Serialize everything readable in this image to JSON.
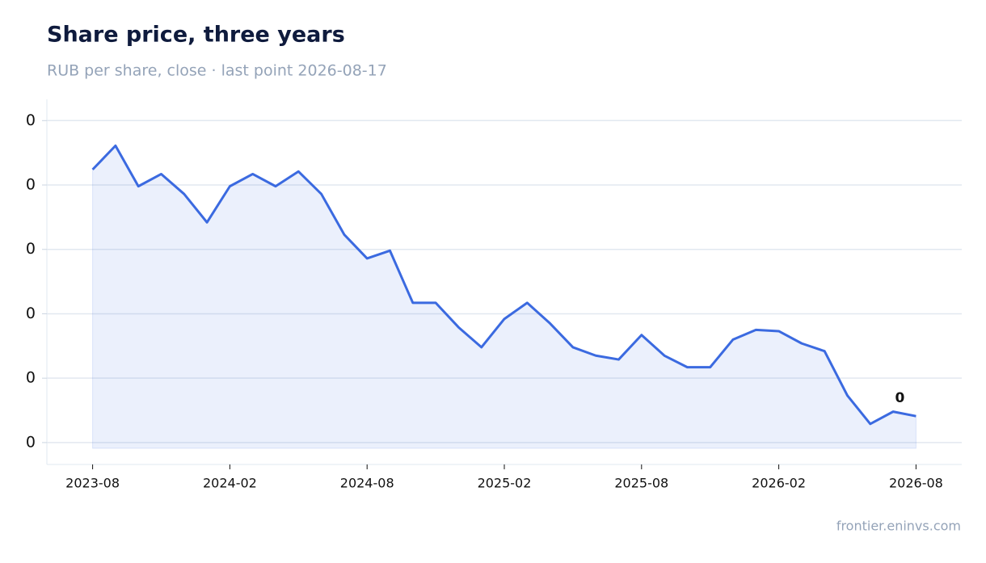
{
  "chart_data": {
    "type": "line",
    "title": "Share price, three years",
    "subtitle": "RUB per share, close · last point 2026-08-17",
    "source": "frontier.eninvs.com",
    "annotation": "0",
    "color": "#3b6ae0",
    "area": true,
    "grid": true,
    "x": [
      "2023-08",
      "2023-09",
      "2023-10",
      "2023-11",
      "2023-12",
      "2024-01",
      "2024-02",
      "2024-03",
      "2024-04",
      "2024-05",
      "2024-06",
      "2024-07",
      "2024-08",
      "2024-09",
      "2024-10",
      "2024-11",
      "2024-12",
      "2025-01",
      "2025-02",
      "2025-03",
      "2025-04",
      "2025-05",
      "2025-06",
      "2025-07",
      "2025-08",
      "2025-09",
      "2025-10",
      "2025-11",
      "2025-12",
      "2026-01",
      "2026-02",
      "2026-03",
      "2026-04",
      "2026-05",
      "2026-06",
      "2026-07",
      "2026-08"
    ],
    "values": [
      0.0524,
      0.0561,
      0.0498,
      0.0517,
      0.0486,
      0.0442,
      0.0498,
      0.0517,
      0.0498,
      0.0521,
      0.0486,
      0.0423,
      0.0386,
      0.0398,
      0.0317,
      0.0317,
      0.0279,
      0.0248,
      0.0292,
      0.0317,
      0.0285,
      0.0248,
      0.0235,
      0.0229,
      0.0267,
      0.0235,
      0.0217,
      0.0217,
      0.026,
      0.0275,
      0.0273,
      0.0254,
      0.0242,
      0.0173,
      0.0129,
      0.0148,
      0.0141
    ],
    "xlim": [
      "2023-06",
      "2026-10"
    ],
    "xticks": [
      "2023-08",
      "2024-02",
      "2024-08",
      "2025-02",
      "2025-08",
      "2026-02",
      "2026-08"
    ],
    "ylim": [
      0.0066,
      0.0633
    ],
    "yticks": [
      {
        "value": 0.01,
        "label": "0"
      },
      {
        "value": 0.02,
        "label": "0"
      },
      {
        "value": 0.03,
        "label": "0"
      },
      {
        "value": 0.04,
        "label": "0"
      },
      {
        "value": 0.05,
        "label": "0"
      },
      {
        "value": 0.06,
        "label": "0"
      }
    ]
  }
}
